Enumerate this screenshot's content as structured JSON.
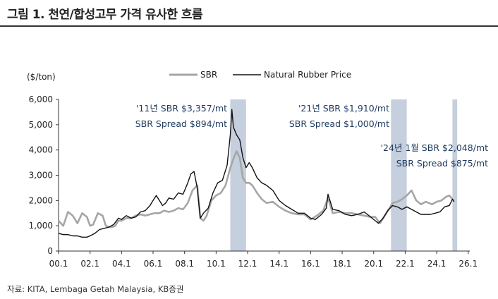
{
  "figure": {
    "title": "그림 1. 천연/합성고무 가격 유사한 흐름",
    "source": "자료: KITA, Lembaga Getah Malaysia, KB증권"
  },
  "chart_data": {
    "type": "line",
    "ylabel": "($/ton)",
    "ylim": [
      0,
      6000
    ],
    "yticks": [
      "0",
      "1,000",
      "2,000",
      "3,000",
      "4,000",
      "5,000",
      "6,000"
    ],
    "xlim": [
      2000.0,
      2026.1
    ],
    "xticks": [
      "00.1",
      "02.1",
      "04.1",
      "06.1",
      "08.1",
      "10.1",
      "12.1",
      "14.1",
      "16.1",
      "18.1",
      "20.1",
      "22.1",
      "24.1",
      "26.1"
    ],
    "grid": false,
    "legend_position": "top",
    "series": [
      {
        "name": "SBR",
        "color": "#a6a6a6",
        "x": [
          2000.0,
          2000.3,
          2000.6,
          2000.9,
          2001.2,
          2001.5,
          2001.8,
          2002.0,
          2002.2,
          2002.5,
          2002.8,
          2003.0,
          2003.2,
          2003.4,
          2003.6,
          2003.8,
          2004.0,
          2004.3,
          2004.6,
          2004.9,
          2005.2,
          2005.5,
          2005.8,
          2006.1,
          2006.4,
          2006.7,
          2007.0,
          2007.3,
          2007.6,
          2007.9,
          2008.2,
          2008.5,
          2008.8,
          2009.0,
          2009.2,
          2009.4,
          2009.7,
          2010.0,
          2010.3,
          2010.6,
          2010.9,
          2011.1,
          2011.3,
          2011.5,
          2011.7,
          2011.9,
          2012.1,
          2012.3,
          2012.6,
          2012.9,
          2013.2,
          2013.6,
          2014.0,
          2014.4,
          2014.8,
          2015.2,
          2015.6,
          2016.0,
          2016.4,
          2016.8,
          2017.1,
          2017.4,
          2017.8,
          2018.2,
          2018.6,
          2019.0,
          2019.4,
          2019.8,
          2020.1,
          2020.4,
          2020.7,
          2021.0,
          2021.2,
          2021.5,
          2021.8,
          2022.1,
          2022.4,
          2022.7,
          2023.0,
          2023.3,
          2023.7,
          2024.0,
          2024.3,
          2024.6,
          2024.8,
          2025.0,
          2025.1
        ],
        "values": [
          1200,
          1000,
          1550,
          1400,
          1100,
          1500,
          1350,
          1000,
          1050,
          1500,
          1400,
          1000,
          950,
          950,
          1000,
          1200,
          1200,
          1300,
          1300,
          1400,
          1450,
          1400,
          1450,
          1500,
          1500,
          1600,
          1550,
          1600,
          1700,
          1650,
          1900,
          2400,
          2600,
          1300,
          1200,
          1400,
          2000,
          2200,
          2300,
          2600,
          3300,
          3650,
          3950,
          3700,
          2900,
          2700,
          2700,
          2600,
          2300,
          2050,
          1900,
          1950,
          1750,
          1600,
          1500,
          1450,
          1450,
          1250,
          1400,
          1600,
          2100,
          1500,
          1550,
          1500,
          1500,
          1450,
          1400,
          1350,
          1350,
          1100,
          1400,
          1700,
          1900,
          1950,
          2050,
          2200,
          2400,
          2000,
          1850,
          1950,
          1850,
          1950,
          2000,
          2150,
          2200,
          2048,
          2000
        ]
      },
      {
        "name": "Natural Rubber Price",
        "color": "#111111",
        "x": [
          2000.0,
          2000.3,
          2000.6,
          2000.9,
          2001.2,
          2001.5,
          2001.8,
          2002.0,
          2002.3,
          2002.6,
          2002.9,
          2003.2,
          2003.5,
          2003.8,
          2004.0,
          2004.3,
          2004.6,
          2004.9,
          2005.2,
          2005.5,
          2005.8,
          2006.0,
          2006.2,
          2006.4,
          2006.6,
          2006.8,
          2007.0,
          2007.3,
          2007.6,
          2007.9,
          2008.2,
          2008.4,
          2008.6,
          2008.8,
          2009.0,
          2009.2,
          2009.5,
          2009.8,
          2010.1,
          2010.4,
          2010.7,
          2010.9,
          2011.0,
          2011.1,
          2011.3,
          2011.5,
          2011.7,
          2011.9,
          2012.1,
          2012.3,
          2012.6,
          2012.9,
          2013.2,
          2013.6,
          2014.0,
          2014.4,
          2014.8,
          2015.2,
          2015.6,
          2016.0,
          2016.3,
          2016.7,
          2017.0,
          2017.1,
          2017.4,
          2017.8,
          2018.2,
          2018.6,
          2019.0,
          2019.4,
          2019.8,
          2020.1,
          2020.3,
          2020.6,
          2020.9,
          2021.2,
          2021.5,
          2021.8,
          2022.1,
          2022.4,
          2022.7,
          2023.0,
          2023.3,
          2023.6,
          2023.9,
          2024.2,
          2024.5,
          2024.8,
          2025.0,
          2025.1
        ],
        "values": [
          700,
          650,
          650,
          600,
          600,
          550,
          550,
          600,
          700,
          850,
          900,
          950,
          1050,
          1300,
          1250,
          1400,
          1300,
          1350,
          1550,
          1600,
          1800,
          2000,
          2200,
          2000,
          1800,
          1900,
          2100,
          2050,
          2300,
          2250,
          2700,
          3050,
          3150,
          2500,
          1300,
          1500,
          1700,
          2300,
          2700,
          2800,
          3400,
          4600,
          5600,
          4900,
          4600,
          4400,
          3700,
          3300,
          3500,
          3300,
          2900,
          2700,
          2600,
          2400,
          2000,
          1800,
          1650,
          1500,
          1500,
          1300,
          1250,
          1450,
          1700,
          2250,
          1650,
          1600,
          1450,
          1400,
          1450,
          1550,
          1350,
          1200,
          1100,
          1300,
          1600,
          1800,
          1750,
          1650,
          1750,
          1650,
          1550,
          1450,
          1450,
          1450,
          1500,
          1550,
          1750,
          1800,
          2050,
          1950
        ]
      }
    ],
    "highlight_periods": [
      [
        2010.9,
        2011.9
      ],
      [
        2021.1,
        2022.1
      ],
      [
        2025.0,
        2025.3
      ]
    ],
    "annotations": [
      {
        "lines": [
          "'11년 SBR $3,357/mt",
          "SBR Spread $894/mt"
        ],
        "align": "end"
      },
      {
        "lines": [
          "'21년 SBR $1,910/mt",
          "SBR Spread $1,000/mt"
        ],
        "align": "end"
      },
      {
        "lines": [
          "'24년 1월 SBR $2,048/mt",
          "SBR Spread $875/mt"
        ],
        "align": "end"
      }
    ]
  }
}
